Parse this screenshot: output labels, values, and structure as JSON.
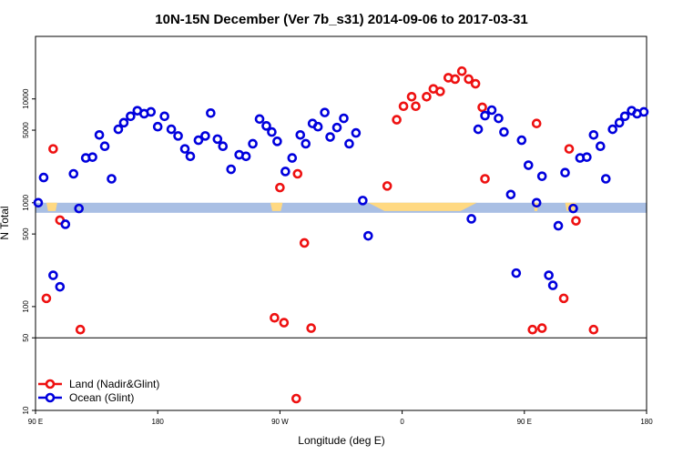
{
  "chart_data": {
    "type": "scatter",
    "title": "10N-15N December (Ver 7b_s31)   2014-09-06 to 2017-03-31",
    "xlabel": "Longitude (deg E)",
    "ylabel": "N Total",
    "x_ticks": [
      {
        "value": 90,
        "label": "90 E"
      },
      {
        "value": 180,
        "label": "180"
      },
      {
        "value": 270,
        "label": "90 W"
      },
      {
        "value": 360,
        "label": "0"
      },
      {
        "value": 450,
        "label": "90 E"
      },
      {
        "value": 540,
        "label": "180"
      }
    ],
    "y_ticks": [
      {
        "value": 10,
        "label": "10"
      },
      {
        "value": 50,
        "label": "50"
      },
      {
        "value": 100,
        "label": "100"
      },
      {
        "value": 500,
        "label": "500"
      },
      {
        "value": 1000,
        "label": "1000"
      },
      {
        "value": 5000,
        "label": "5000"
      },
      {
        "value": 10000,
        "label": "10000"
      }
    ],
    "xlim": [
      90,
      540
    ],
    "ylim_log": [
      10,
      40000
    ],
    "y_scale": "log",
    "separator_y": 50,
    "band": {
      "low": 800,
      "high": 1000,
      "color": "#a9bfe4"
    },
    "band_fill_color": "#ffd982",
    "legend_position": "bottom-left",
    "series": [
      {
        "name": "Land (Nadir&Glint)",
        "color": "#ee1111",
        "points": [
          [
            98,
            120
          ],
          [
            103,
            3300
          ],
          [
            108,
            680
          ],
          [
            123,
            60
          ],
          [
            266,
            78
          ],
          [
            273,
            70
          ],
          [
            270,
            1400
          ],
          [
            283,
            1900
          ],
          [
            288,
            410
          ],
          [
            293,
            62
          ],
          [
            282,
            13
          ],
          [
            349,
            1450
          ],
          [
            356,
            6300
          ],
          [
            361,
            8500
          ],
          [
            367,
            10500
          ],
          [
            370,
            8500
          ],
          [
            378,
            10500
          ],
          [
            383,
            12500
          ],
          [
            388,
            11800
          ],
          [
            394,
            16000
          ],
          [
            399,
            15500
          ],
          [
            404,
            18500
          ],
          [
            409,
            15500
          ],
          [
            414,
            14000
          ],
          [
            419,
            8300
          ],
          [
            421,
            1700
          ],
          [
            459,
            5800
          ],
          [
            456,
            60
          ],
          [
            463,
            62
          ],
          [
            479,
            120
          ],
          [
            483,
            3300
          ],
          [
            488,
            670
          ],
          [
            501,
            60
          ]
        ]
      },
      {
        "name": "Ocean (Glint)",
        "color": "#0000dd",
        "points": [
          [
            92,
            1000
          ],
          [
            96,
            1750
          ],
          [
            103,
            200
          ],
          [
            108,
            155
          ],
          [
            112,
            620
          ],
          [
            118,
            1900
          ],
          [
            122,
            880
          ],
          [
            127,
            2700
          ],
          [
            132,
            2750
          ],
          [
            137,
            4500
          ],
          [
            141,
            3500
          ],
          [
            146,
            1700
          ],
          [
            151,
            5100
          ],
          [
            155,
            5900
          ],
          [
            160,
            6800
          ],
          [
            165,
            7700
          ],
          [
            170,
            7200
          ],
          [
            175,
            7500
          ],
          [
            180,
            5400
          ],
          [
            185,
            6800
          ],
          [
            190,
            5100
          ],
          [
            195,
            4400
          ],
          [
            200,
            3300
          ],
          [
            204,
            2800
          ],
          [
            210,
            4000
          ],
          [
            215,
            4400
          ],
          [
            219,
            7300
          ],
          [
            224,
            4100
          ],
          [
            228,
            3500
          ],
          [
            234,
            2100
          ],
          [
            240,
            2900
          ],
          [
            245,
            2800
          ],
          [
            250,
            3700
          ],
          [
            255,
            6400
          ],
          [
            260,
            5500
          ],
          [
            264,
            4800
          ],
          [
            268,
            3900
          ],
          [
            274,
            2000
          ],
          [
            279,
            2700
          ],
          [
            285,
            4500
          ],
          [
            289,
            3700
          ],
          [
            294,
            5800
          ],
          [
            298,
            5400
          ],
          [
            303,
            7400
          ],
          [
            307,
            4300
          ],
          [
            312,
            5300
          ],
          [
            317,
            6500
          ],
          [
            321,
            3700
          ],
          [
            326,
            4700
          ],
          [
            331,
            1050
          ],
          [
            335,
            480
          ],
          [
            411,
            700
          ],
          [
            416,
            5100
          ],
          [
            421,
            6900
          ],
          [
            426,
            7800
          ],
          [
            431,
            6500
          ],
          [
            435,
            4800
          ],
          [
            440,
            1200
          ],
          [
            444,
            210
          ],
          [
            448,
            4000
          ],
          [
            453,
            2300
          ],
          [
            459,
            1000
          ],
          [
            463,
            1800
          ],
          [
            468,
            200
          ],
          [
            471,
            160
          ],
          [
            475,
            600
          ],
          [
            480,
            1950
          ],
          [
            486,
            880
          ],
          [
            491,
            2700
          ],
          [
            496,
            2750
          ],
          [
            501,
            4500
          ],
          [
            506,
            3500
          ],
          [
            510,
            1700
          ],
          [
            515,
            5100
          ],
          [
            520,
            5900
          ],
          [
            524,
            6800
          ],
          [
            529,
            7700
          ],
          [
            533,
            7200
          ],
          [
            538,
            7500
          ]
        ]
      }
    ]
  }
}
